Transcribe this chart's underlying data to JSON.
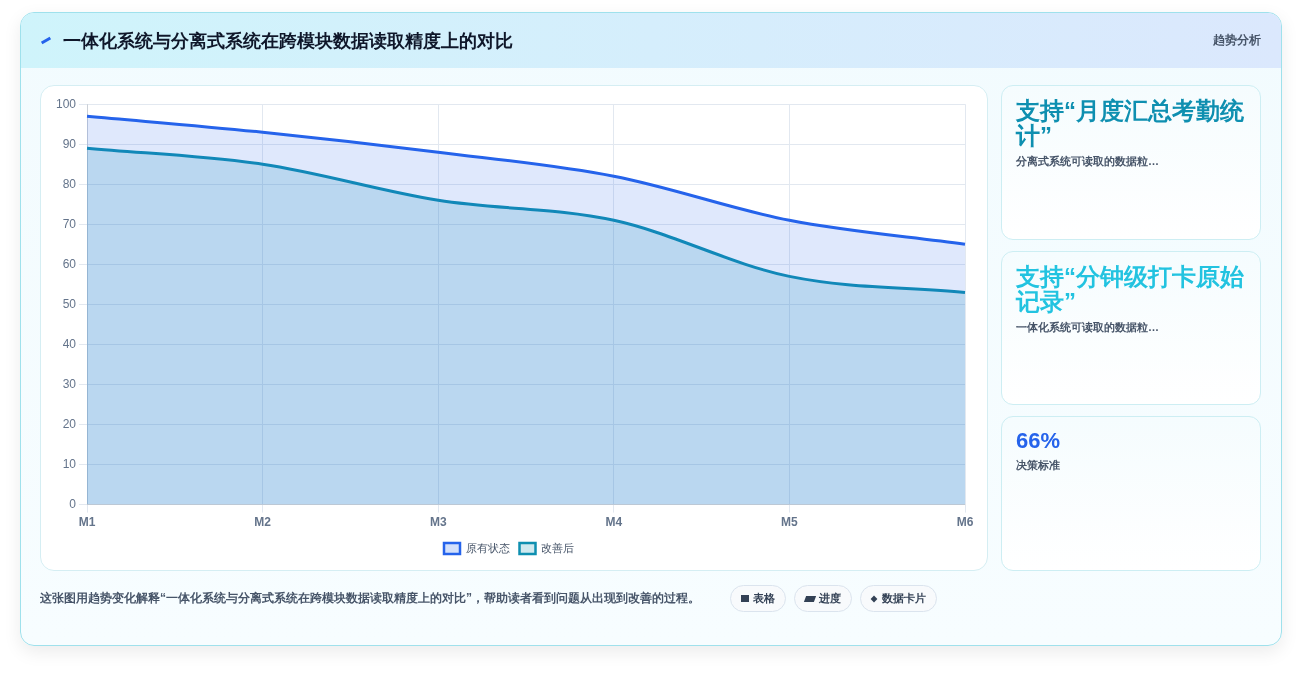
{
  "chart_data": {
    "type": "area",
    "title": "一体化系统与分离式系统在跨模块数据读取精度上的对比",
    "categories": [
      "M1",
      "M2",
      "M3",
      "M4",
      "M5",
      "M6"
    ],
    "series": [
      {
        "name": "原有状态",
        "color": "#2563eb",
        "values": [
          97,
          93,
          88,
          82,
          71,
          65
        ]
      },
      {
        "name": "改善后",
        "color": "#0e8fb0",
        "values": [
          89,
          85,
          76,
          71,
          57,
          53
        ]
      }
    ],
    "ylim": [
      0,
      100
    ],
    "yticks": [
      0,
      10,
      20,
      30,
      40,
      50,
      60,
      70,
      80,
      90,
      100
    ],
    "grid": true,
    "legend": "bottom",
    "marker": "none",
    "line_style": "solid",
    "annotations": [
      "趋势分析",
      "支持“月度汇总考勤统计”",
      "分离式系统可读取的数据粒…",
      "支持“分钟级打卡原始记录”",
      "一体化系统可读取的数据粒…",
      "66%",
      "决策标准",
      "这张图用趋势变化解释“一体化系统与分离式系统在跨模块数据读取精度上的对比”，帮助读者看到问题从出现到改善的过程。",
      "表格",
      "进度",
      "数据卡片"
    ]
  }
}
